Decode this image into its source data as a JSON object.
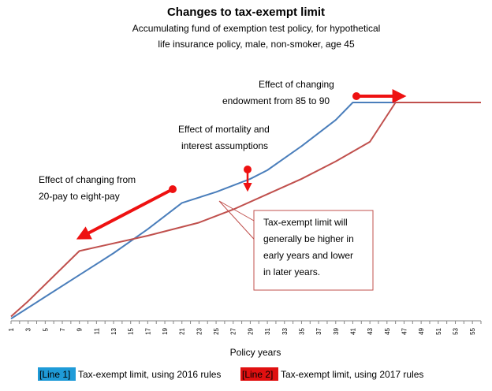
{
  "chart_data": {
    "type": "line",
    "title": "Changes to tax-exempt limit",
    "subtitle_line1": "Accumulating fund of exemption test policy, for hypothetical",
    "subtitle_line2": "life insurance policy, male, non-smoker, age 45",
    "xlabel": "Policy years",
    "ylabel": "",
    "x_ticks": [
      "1",
      "3",
      "5",
      "7",
      "9",
      "11",
      "13",
      "15",
      "17",
      "19",
      "21",
      "23",
      "25",
      "27",
      "29",
      "31",
      "33",
      "35",
      "37",
      "39",
      "41",
      "43",
      "45",
      "47",
      "49",
      "51",
      "53",
      "55"
    ],
    "xlim": [
      1,
      56
    ],
    "ylim": [
      0,
      100
    ],
    "grid": false,
    "legend_position": "bottom",
    "series": [
      {
        "name": "Tax-exempt limit, using 2016 rules",
        "legend_tag": "[Line 1]",
        "color": "#4a7ebb",
        "tag_bg": "#1f9bd8",
        "x": [
          1,
          5,
          9,
          13,
          17,
          21,
          25,
          29,
          31,
          35,
          39,
          41,
          43,
          45,
          56
        ],
        "y": [
          1,
          11,
          21,
          31,
          42,
          54,
          59,
          65,
          69,
          80,
          92,
          100,
          100,
          100,
          100
        ]
      },
      {
        "name": "Tax-exempt limit, using 2017 rules",
        "legend_tag": "[Line 2]",
        "color": "#c0504d",
        "tag_bg": "#e01010",
        "x": [
          1,
          3,
          9,
          17,
          23,
          27,
          31,
          35,
          39,
          43,
          46,
          56
        ],
        "y": [
          2,
          9,
          32,
          39,
          45,
          51,
          58,
          65,
          73,
          82,
          100,
          100
        ]
      }
    ],
    "annotations": [
      {
        "lines": [
          "Effect of changing",
          "endowment from 85 to 90"
        ]
      },
      {
        "lines": [
          "Effect of mortality and",
          "interest assumptions"
        ]
      },
      {
        "lines": [
          "Effect of changing from",
          "20-pay to eight-pay"
        ]
      },
      {
        "lines": [
          "Tax-exempt limit will",
          "generally be higher in",
          "early years and lower",
          "in later years."
        ]
      }
    ],
    "arrow_color": "#ee1111"
  }
}
